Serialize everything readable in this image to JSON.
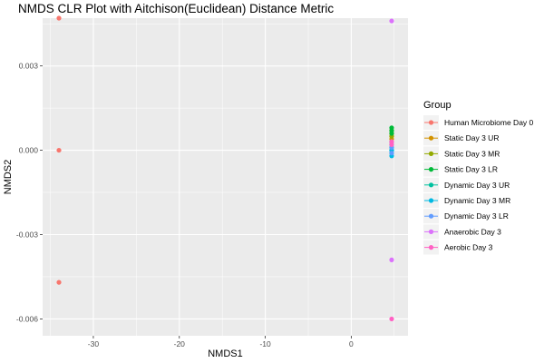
{
  "chart_data": {
    "type": "scatter",
    "title": "NMDS CLR Plot with Aitchison(Euclidean) Distance Metric",
    "xlabel": "NMDS1",
    "ylabel": "NMDS2",
    "xlim": [
      -35.9,
      6.6
    ],
    "ylim": [
      -0.0066,
      0.0047
    ],
    "x_ticks": [
      -30,
      -20,
      -10,
      0
    ],
    "x_tick_labels": [
      "-30",
      "-20",
      "-10",
      "0"
    ],
    "y_ticks": [
      -0.006,
      -0.003,
      0.0,
      0.003
    ],
    "y_tick_labels": [
      "-0.006",
      "-0.003",
      "0.000",
      "0.003"
    ],
    "grid": true,
    "background": "#ebebeb",
    "legend": {
      "title": "Group",
      "position": "right"
    },
    "series": [
      {
        "name": "Human Microbiome Day 0",
        "color": "#F8766D",
        "points": [
          [
            -34.0,
            0.0047
          ],
          [
            -34.0,
            0.0
          ],
          [
            -34.0,
            -0.0047
          ]
        ]
      },
      {
        "name": "Static Day 3 UR",
        "color": "#D39200",
        "points": [
          [
            4.7,
            0.0006
          ],
          [
            4.7,
            0.0005
          ],
          [
            4.7,
            0.0004
          ]
        ]
      },
      {
        "name": "Static Day 3 MR",
        "color": "#93AA00",
        "points": [
          [
            4.7,
            0.0007
          ],
          [
            4.7,
            0.0005
          ],
          [
            4.7,
            0.0003
          ]
        ]
      },
      {
        "name": "Static Day 3 LR",
        "color": "#00BA38",
        "points": [
          [
            4.7,
            0.0008
          ],
          [
            4.7,
            0.0007
          ],
          [
            4.7,
            0.0006
          ]
        ]
      },
      {
        "name": "Dynamic Day 3 UR",
        "color": "#00C19F",
        "points": [
          [
            4.7,
            0.0002
          ],
          [
            4.7,
            0.0001
          ],
          [
            4.7,
            0.0
          ]
        ]
      },
      {
        "name": "Dynamic Day 3 MR",
        "color": "#00B9E3",
        "points": [
          [
            4.7,
            0.0
          ],
          [
            4.7,
            -0.0001
          ],
          [
            4.7,
            -0.0002
          ]
        ]
      },
      {
        "name": "Dynamic Day 3 LR",
        "color": "#619CFF",
        "points": [
          [
            4.7,
            0.0001
          ],
          [
            4.7,
            -0.0001
          ],
          [
            4.7,
            0.0003
          ]
        ]
      },
      {
        "name": "Anaerobic Day 3",
        "color": "#DB72FB",
        "points": [
          [
            4.7,
            0.0046
          ],
          [
            4.7,
            -0.0039
          ],
          [
            4.7,
            0.0003
          ]
        ]
      },
      {
        "name": "Aerobic Day 3",
        "color": "#FF61C3",
        "points": [
          [
            4.7,
            -0.006
          ],
          [
            4.7,
            0.0003
          ],
          [
            4.7,
            0.0002
          ]
        ]
      }
    ]
  }
}
